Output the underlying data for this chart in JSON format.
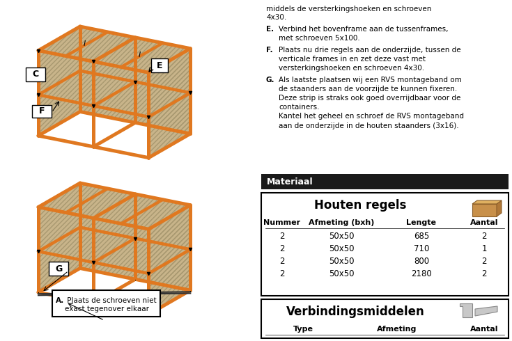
{
  "page_bg": "#ffffff",
  "orange_color": "#E07820",
  "wood_dark": "#C8964A",
  "panel_color": "#C8B48A",
  "panel_hatch_color": "#A89870",
  "materiaal_header": "Materiaal",
  "materiaal_bg": "#1a1a1a",
  "materiaal_text_color": "#ffffff",
  "table1_title": "Houten regels",
  "table1_headers": [
    "Nummer",
    "Afmeting (bxh)",
    "Lengte",
    "Aantal"
  ],
  "table1_rows": [
    [
      "2",
      "50x50",
      "685",
      "2"
    ],
    [
      "2",
      "50x50",
      "710",
      "1"
    ],
    [
      "2",
      "50x50",
      "800",
      "2"
    ],
    [
      "2",
      "50x50",
      "2180",
      "2"
    ]
  ],
  "table2_title": "Verbindingsmiddelen",
  "table2_headers": [
    "Type",
    "Afmeting",
    "Aantal"
  ],
  "instr_line0": "middels de versterkingshoeken en schroeven",
  "instr_line1": "4x30.",
  "bullet_E_key": "E.",
  "bullet_E_text": "Verbind het bovenframe aan de tussenframes,\nmet schroeven 5x100.",
  "bullet_F_key": "F.",
  "bullet_F_text": "Plaats nu drie regels aan de onderzijde, tussen de\nverticale frames in en zet deze vast met\nversterkingshoeken en schroeven 4x30.",
  "bullet_G_key": "G.",
  "bullet_G_text": "Als laatste plaatsen wij een RVS montageband om\nde staanders aan de voorzijde te kunnen fixeren.\nDeze strip is straks ook goed overrijdbaar voor de\ncontainers.\nKantel het geheel en schroef de RVS montageband\naan de onderzijde in de houten staanders (3x16).",
  "note_A_bold": "A.",
  "note_A_rest": " Plaats de schroeven niet\nexact tegenover elkaar"
}
